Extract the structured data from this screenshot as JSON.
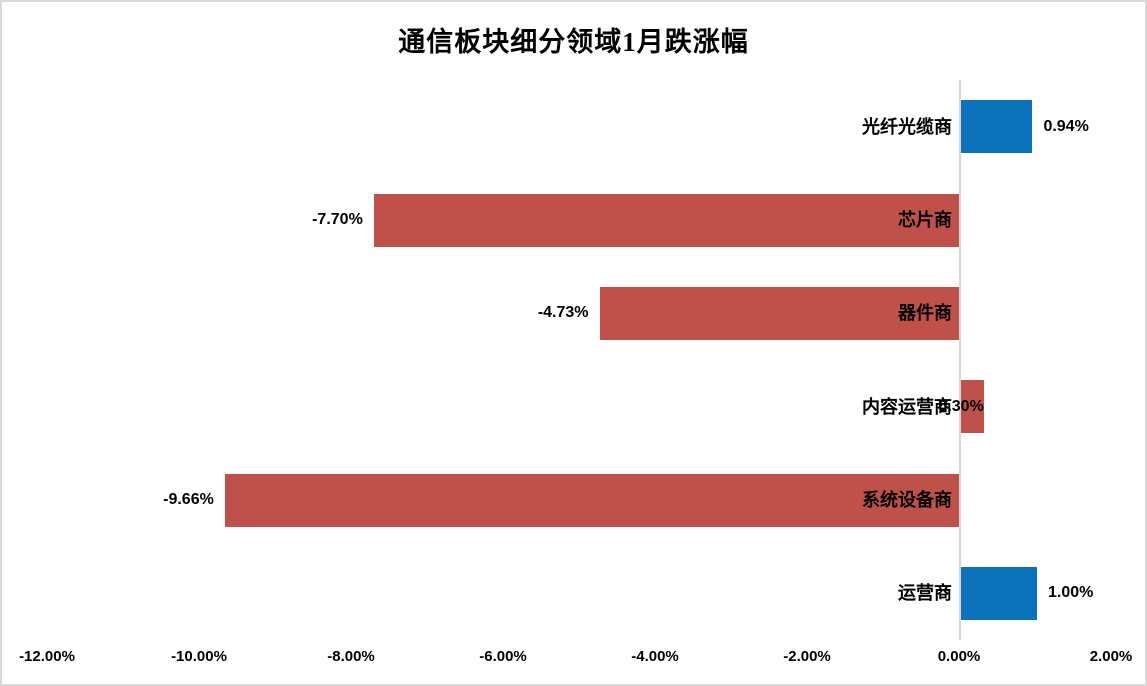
{
  "chart_data": {
    "type": "bar",
    "orientation": "horizontal",
    "title": "通信板块细分领域1月跌涨幅",
    "categories": [
      "光纤光缆商",
      "芯片商",
      "器件商",
      "内容运营商",
      "系统设备商",
      "运营商"
    ],
    "series": [
      {
        "name": "1月跌涨幅",
        "values": [
          0.94,
          -7.7,
          -4.73,
          0.3,
          -9.66,
          1.0
        ]
      }
    ],
    "data_labels": [
      "0.94%",
      "-7.70%",
      "-4.73%",
      "0.30%",
      "-9.66%",
      "1.00%"
    ],
    "bar_colors": [
      "#0b72bc",
      "#c0514a",
      "#c0514a",
      "#c0514a",
      "#c0514a",
      "#0b72bc"
    ],
    "value_label_overlaps_category": [
      false,
      false,
      false,
      true,
      false,
      false
    ],
    "x_axis": {
      "tick_labels": [
        "-12.00%",
        "-10.00%",
        "-8.00%",
        "-6.00%",
        "-4.00%",
        "-2.00%",
        "0.00%",
        "2.00%"
      ],
      "tick_values": [
        -12,
        -10,
        -8,
        -6,
        -4,
        -2,
        0,
        2
      ],
      "range": [
        -12,
        2
      ]
    },
    "legend": "none",
    "grid": "none",
    "colors": {
      "positive_bar": "#0b72bc",
      "negative_bar": "#c0514a",
      "axis_line": "#d6d6d6",
      "text": "#000000",
      "chart_border": "#d9d9d9"
    }
  }
}
